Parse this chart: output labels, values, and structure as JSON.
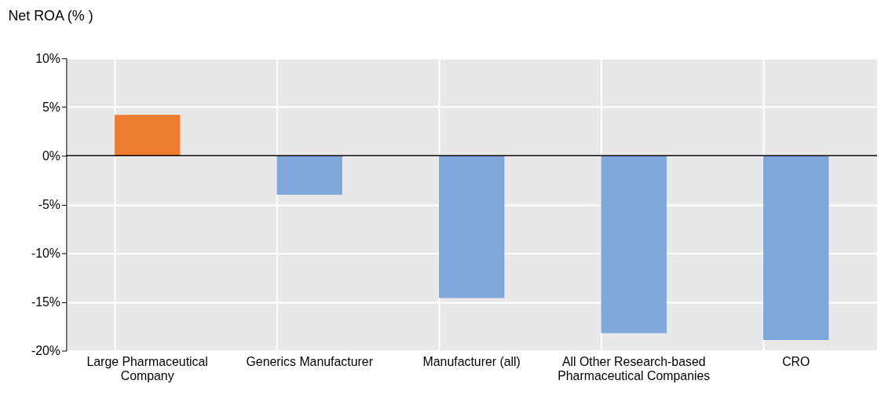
{
  "chart_data": {
    "type": "bar",
    "ylabel": "Net ROA (% )",
    "categories": [
      "Large Pharmaceutical Company",
      "Generics Manufacturer",
      "Manufacturer (all)",
      "All Other Research-based Pharmaceutical Companies",
      "CRO"
    ],
    "values": [
      4.2,
      -4.0,
      -14.6,
      -18.2,
      -18.9
    ],
    "colors": [
      "#ed7d31",
      "#7fa7d9",
      "#7fa7d9",
      "#7fa7d9",
      "#7fa7d9"
    ],
    "ylim": [
      -20,
      10
    ],
    "yticks": [
      {
        "value": -20,
        "label": "-20%"
      },
      {
        "value": -15,
        "label": "-15%"
      },
      {
        "value": -10,
        "label": "-10%"
      },
      {
        "value": -5,
        "label": "-5%"
      },
      {
        "value": 0,
        "label": "0%"
      },
      {
        "value": 5,
        "label": "5%"
      },
      {
        "value": 10,
        "label": "10%"
      }
    ],
    "grid": true
  }
}
